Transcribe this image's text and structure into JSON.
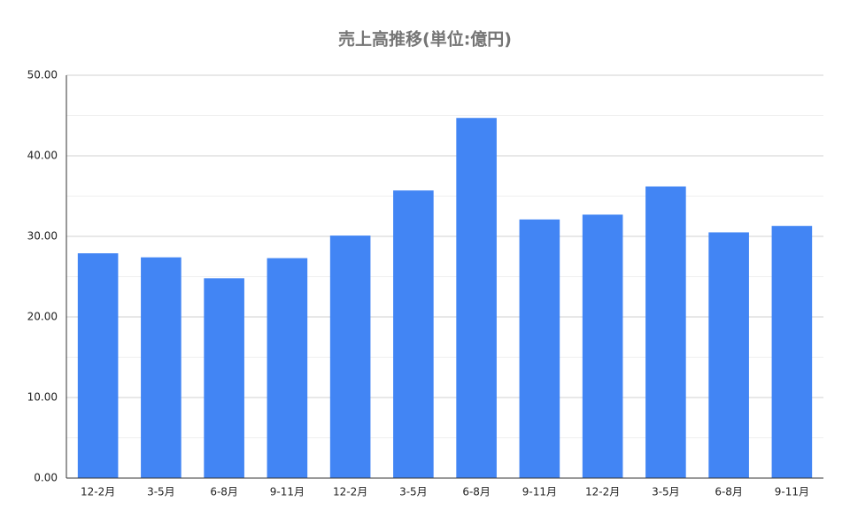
{
  "chart_data": {
    "type": "bar",
    "title": "売上高推移(単位:億円)",
    "categories": [
      "12-2月",
      "3-5月",
      "6-8月",
      "9-11月",
      "12-2月",
      "3-5月",
      "6-8月",
      "9-11月",
      "12-2月",
      "3-5月",
      "6-8月",
      "9-11月"
    ],
    "values": [
      27.9,
      27.4,
      24.8,
      27.3,
      30.1,
      35.7,
      44.7,
      32.1,
      32.7,
      36.2,
      30.5,
      31.3
    ],
    "color": "#4285f4",
    "ylim": [
      0,
      50
    ],
    "yticks": [
      {
        "value": 0,
        "label": "0.00"
      },
      {
        "value": 10,
        "label": "10.00"
      },
      {
        "value": 20,
        "label": "20.00"
      },
      {
        "value": 30,
        "label": "30.00"
      },
      {
        "value": 40,
        "label": "40.00"
      },
      {
        "value": 50,
        "label": "50.00"
      }
    ],
    "yminorticks": [
      5,
      15,
      25,
      35,
      45
    ],
    "grid": true
  }
}
